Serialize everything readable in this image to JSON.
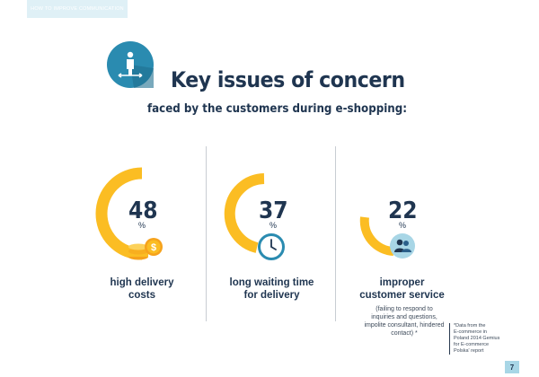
{
  "header": {
    "section_tab": "HOW TO IMPROVE COMMUNICATION"
  },
  "title": {
    "main": "Key issues of concern",
    "sub": "faced by the customers during e-shopping:"
  },
  "stats": [
    {
      "value": "48",
      "unit": "%",
      "label": "high delivery\ncosts",
      "icon": "coins-icon"
    },
    {
      "value": "37",
      "unit": "%",
      "label": "long waiting time\nfor delivery",
      "icon": "clock-icon"
    },
    {
      "value": "22",
      "unit": "%",
      "label": "improper\ncustomer service",
      "note": "(failing to respond to\ninquiries and questions,\nimpolite consultant, hindered\ncontact) *",
      "icon": "people-icon"
    }
  ],
  "footnote": "*Data from the\n E-commerce in\nPoland 2014 Gemius\nfor E-commerce\nPolska' report",
  "page_number": "7",
  "colors": {
    "accent": "#fbbd23",
    "navy": "#1f3550",
    "teal": "#2a8bb0",
    "light_blue": "#a8d6e6"
  }
}
